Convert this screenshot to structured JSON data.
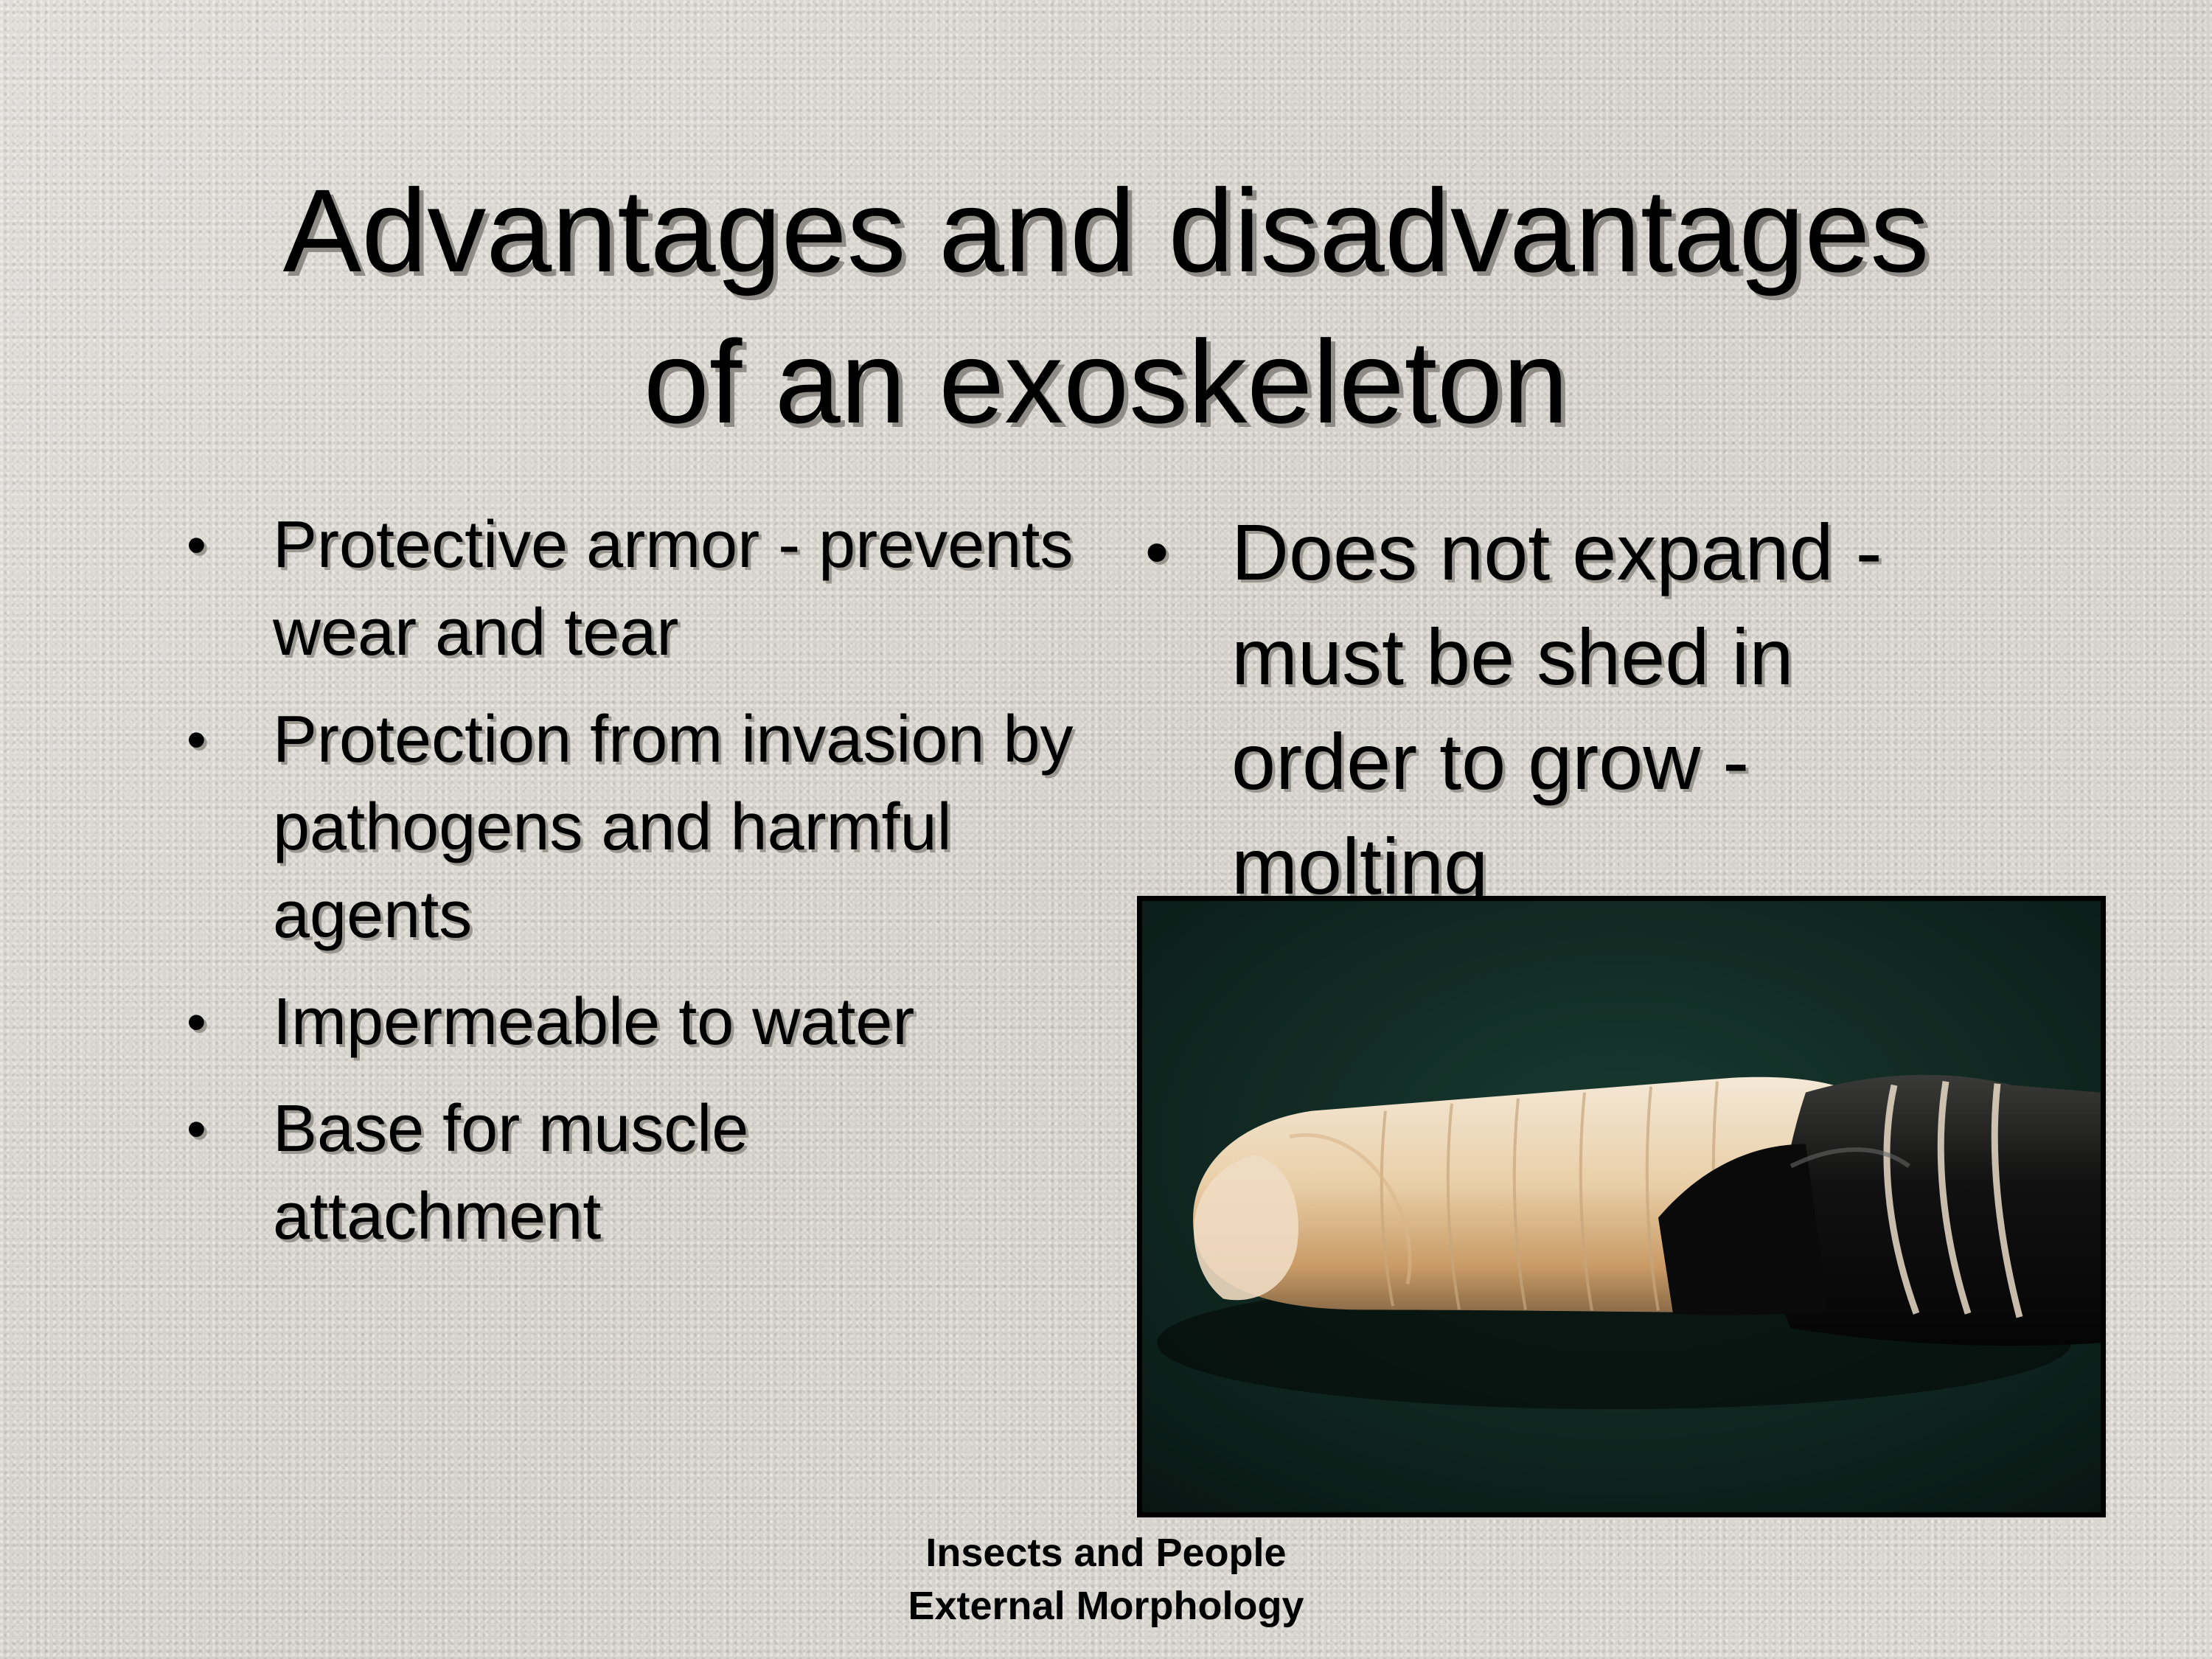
{
  "slide": {
    "title_lines": [
      "Advantages and disadvantages",
      "of an exoskeleton"
    ],
    "advantages": [
      "Protective armor - prevents wear and tear",
      "Protection from invasion by pathogens and harmful agents",
      "Impermeable to water",
      "Base for muscle attachment"
    ],
    "disadvantages": [
      "Does not expand - must be shed in order to grow - molting"
    ],
    "bullet_symbol": "•",
    "footer_lines": [
      "Insects and People",
      "External Morphology"
    ]
  },
  "colors": {
    "background": "#d9d6d0",
    "text": "#000000",
    "photo_border": "#000000"
  }
}
